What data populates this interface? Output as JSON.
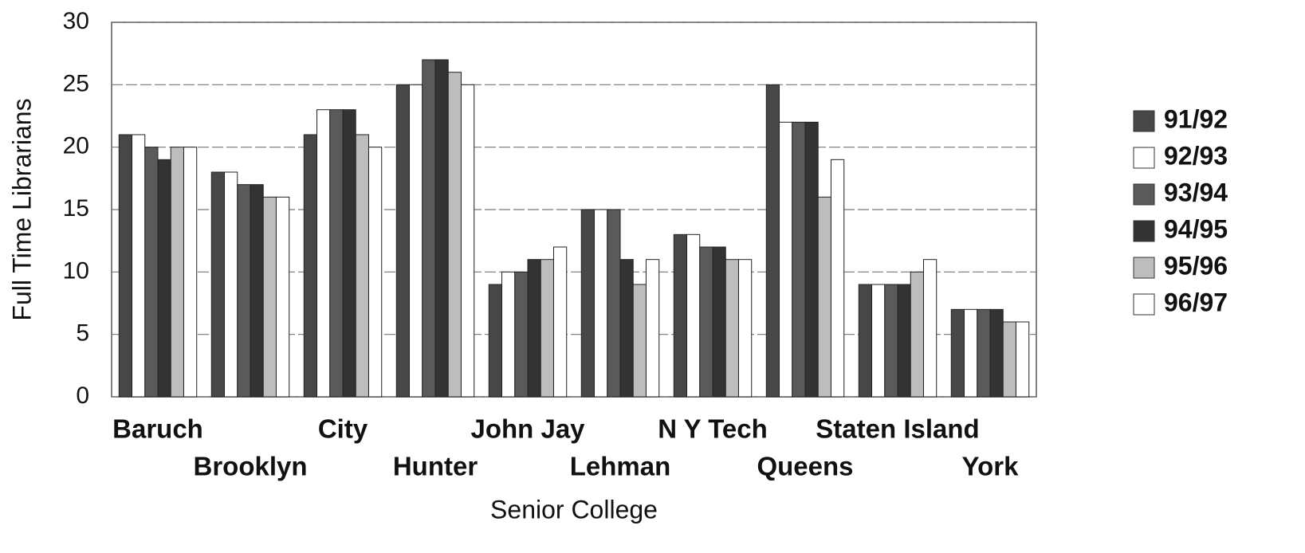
{
  "chart_data": {
    "type": "bar",
    "x_label": "Senior College",
    "y_label": "Full Time Librarians",
    "categories": [
      "Baruch",
      "Brooklyn",
      "City",
      "Hunter",
      "John Jay",
      "Lehman",
      "N Y Tech",
      "Queens",
      "Staten Island",
      "York"
    ],
    "series": [
      {
        "name": "91/92",
        "color": "#474747",
        "values": [
          21,
          18,
          21,
          25,
          9,
          15,
          13,
          25,
          9,
          7
        ]
      },
      {
        "name": "92/93",
        "color": "#ffffff",
        "values": [
          21,
          18,
          23,
          25,
          10,
          15,
          13,
          22,
          9,
          7
        ]
      },
      {
        "name": "93/94",
        "color": "#5a5a5a",
        "values": [
          20,
          17,
          23,
          27,
          10,
          15,
          12,
          22,
          9,
          7
        ]
      },
      {
        "name": "94/95",
        "color": "#333333",
        "values": [
          19,
          17,
          23,
          27,
          11,
          11,
          12,
          22,
          9,
          7
        ]
      },
      {
        "name": "95/96",
        "color": "#bdbdbd",
        "values": [
          20,
          16,
          21,
          26,
          11,
          9,
          11,
          16,
          10,
          6
        ]
      },
      {
        "name": "96/97",
        "color": "#ffffff",
        "values": [
          20,
          16,
          20,
          25,
          12,
          11,
          11,
          19,
          11,
          6
        ]
      }
    ],
    "ylim": [
      0,
      30
    ],
    "yticks": [
      0,
      5,
      10,
      15,
      20,
      25,
      30
    ],
    "grid": true,
    "legend": "right"
  }
}
